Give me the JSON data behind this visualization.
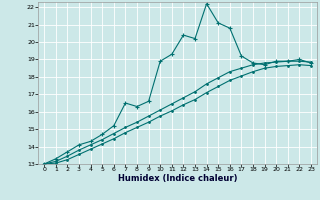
{
  "xlabel": "Humidex (Indice chaleur)",
  "bg_color": "#cce8e8",
  "grid_color": "#ffffff",
  "line_color": "#007070",
  "xlim": [
    -0.5,
    23.5
  ],
  "ylim": [
    13,
    22.3
  ],
  "xticks": [
    0,
    1,
    2,
    3,
    4,
    5,
    6,
    7,
    8,
    9,
    10,
    11,
    12,
    13,
    14,
    15,
    16,
    17,
    18,
    19,
    20,
    21,
    22,
    23
  ],
  "yticks": [
    13,
    14,
    15,
    16,
    17,
    18,
    19,
    20,
    21,
    22
  ],
  "line1_x": [
    0,
    1,
    2,
    3,
    4,
    5,
    6,
    7,
    8,
    9,
    10,
    11,
    12,
    13,
    14,
    15,
    16,
    17,
    18,
    19,
    20,
    21,
    22,
    23
  ],
  "line1_y": [
    13.0,
    13.3,
    13.7,
    14.1,
    14.3,
    14.7,
    15.2,
    16.5,
    16.3,
    16.6,
    18.9,
    19.3,
    20.4,
    20.2,
    22.2,
    21.1,
    20.8,
    19.2,
    18.8,
    18.7,
    18.9,
    18.9,
    19.0,
    18.8
  ],
  "line2_x": [
    0,
    1,
    2,
    3,
    4,
    5,
    6,
    7,
    8,
    9,
    10,
    11,
    12,
    13,
    14,
    15,
    16,
    17,
    18,
    19,
    20,
    21,
    22,
    23
  ],
  "line2_y": [
    13.0,
    13.15,
    13.45,
    13.8,
    14.1,
    14.4,
    14.75,
    15.1,
    15.4,
    15.75,
    16.1,
    16.45,
    16.8,
    17.15,
    17.6,
    17.95,
    18.3,
    18.5,
    18.7,
    18.8,
    18.85,
    18.9,
    18.9,
    18.85
  ],
  "line3_x": [
    0,
    1,
    2,
    3,
    4,
    5,
    6,
    7,
    8,
    9,
    10,
    11,
    12,
    13,
    14,
    15,
    16,
    17,
    18,
    19,
    20,
    21,
    22,
    23
  ],
  "line3_y": [
    13.0,
    13.05,
    13.25,
    13.55,
    13.85,
    14.15,
    14.45,
    14.8,
    15.1,
    15.4,
    15.75,
    16.05,
    16.4,
    16.7,
    17.1,
    17.45,
    17.8,
    18.05,
    18.3,
    18.5,
    18.6,
    18.65,
    18.7,
    18.65
  ]
}
